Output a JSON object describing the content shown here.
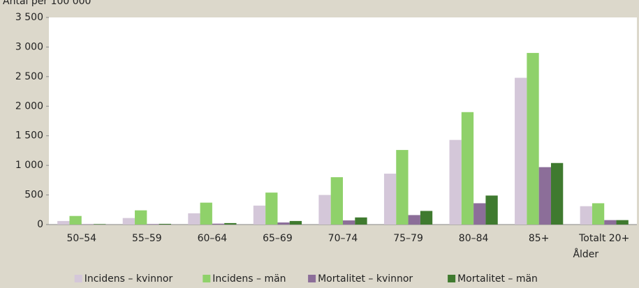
{
  "chart_data": {
    "type": "bar",
    "y_label": "Antal per 100 000",
    "x_label": "Ålder",
    "categories": [
      "50–54",
      "55–59",
      "60–64",
      "65–69",
      "70–74",
      "75–79",
      "80–84",
      "85+",
      "Totalt 20+"
    ],
    "series": [
      {
        "name": "Incidens – kvinnor",
        "color": "#d4c7d9",
        "values": [
          60,
          110,
          190,
          320,
          500,
          860,
          1430,
          2480,
          310
        ]
      },
      {
        "name": "Incidens – män",
        "color": "#8fd16a",
        "values": [
          145,
          240,
          370,
          540,
          800,
          1260,
          1900,
          2900,
          360
        ]
      },
      {
        "name": "Mortalitet – kvinnor",
        "color": "#8c6e99",
        "values": [
          5,
          8,
          15,
          35,
          70,
          160,
          360,
          970,
          75
        ]
      },
      {
        "name": "Mortalitet – män",
        "color": "#3f7a2f",
        "values": [
          8,
          12,
          25,
          60,
          120,
          230,
          490,
          1040,
          75
        ]
      }
    ],
    "ylim": [
      0,
      3500
    ],
    "yticks": [
      0,
      500,
      {
        "value": 1000,
        "label": "1 000"
      },
      {
        "value": 1500,
        "label": "1 500"
      },
      {
        "value": 2000,
        "label": "2 000"
      },
      {
        "value": 2500,
        "label": "2 500"
      },
      {
        "value": 3000,
        "label": "3 000"
      },
      {
        "value": 3500,
        "label": "3 500"
      }
    ],
    "grid": false
  }
}
